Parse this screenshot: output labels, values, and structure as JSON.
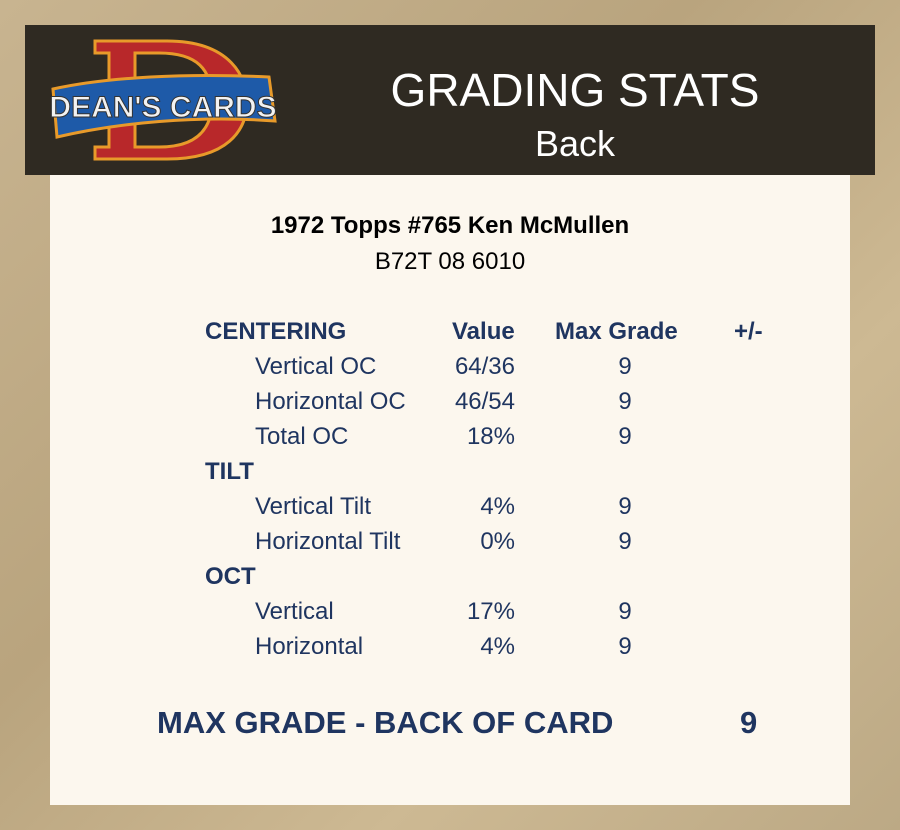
{
  "header": {
    "logo_text": "DEAN'S CARDS",
    "title": "GRADING STATS",
    "subtitle": "Back"
  },
  "card": {
    "name": "1972 Topps #765 Ken McMullen",
    "code": "B72T 08 6010"
  },
  "columns": {
    "value": "Value",
    "max_grade": "Max Grade",
    "plus_minus": "+/-"
  },
  "rows": [
    {
      "type": "section",
      "label": "CENTERING"
    },
    {
      "type": "item",
      "label": "Vertical OC",
      "value": "64/36",
      "max": "9"
    },
    {
      "type": "item",
      "label": "Horizontal OC",
      "value": "46/54",
      "max": "9"
    },
    {
      "type": "item",
      "label": "Total OC",
      "value": "18%",
      "max": "9"
    },
    {
      "type": "section",
      "label": "TILT"
    },
    {
      "type": "item",
      "label": "Vertical Tilt",
      "value": "4%",
      "max": "9"
    },
    {
      "type": "item",
      "label": "Horizontal Tilt",
      "value": "0%",
      "max": "9"
    },
    {
      "type": "section",
      "label": "OCT"
    },
    {
      "type": "item",
      "label": "Vertical",
      "value": "17%",
      "max": "9"
    },
    {
      "type": "item",
      "label": "Horizontal",
      "value": "4%",
      "max": "9"
    }
  ],
  "summary": {
    "label": "MAX GRADE - BACK OF CARD",
    "value": "9"
  }
}
